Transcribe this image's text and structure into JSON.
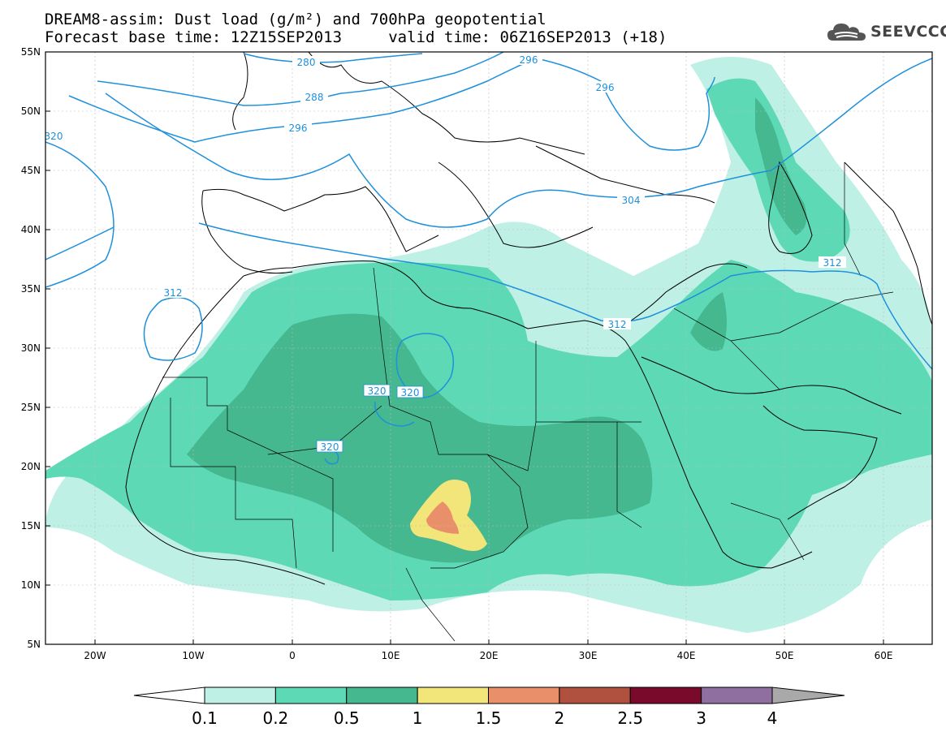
{
  "title": {
    "line1": "DREAM8-assim: Dust load (g/m²) and 700hPa geopotential",
    "line2": "Forecast base time: 12Z15SEP2013     valid time: 06Z16SEP2013 (+18)"
  },
  "logo": {
    "text": "SEEVCCC",
    "icon": "cloud-icon"
  },
  "axes": {
    "lat_labels": [
      "55N",
      "50N",
      "45N",
      "40N",
      "35N",
      "30N",
      "25N",
      "20N",
      "15N",
      "10N",
      "5N"
    ],
    "lon_labels": [
      "20W",
      "10W",
      "0",
      "10E",
      "20E",
      "30E",
      "40E",
      "50E",
      "60E"
    ]
  },
  "contours": {
    "labels": [
      "280",
      "288",
      "296",
      "296",
      "296",
      "320",
      "304",
      "312",
      "312",
      "312",
      "320",
      "320",
      "320"
    ]
  },
  "colorbar": {
    "ticks": [
      "0.1",
      "0.2",
      "0.5",
      "1",
      "1.5",
      "2",
      "2.5",
      "3",
      "4"
    ],
    "colors": [
      "#bff0e6",
      "#5ed9b5",
      "#45b890",
      "#f2e57a",
      "#e9906b",
      "#b0503e",
      "#7a0a2b",
      "#8e6fa0"
    ],
    "under_color": "#ffffff",
    "over_color": "#a9a9a9"
  },
  "colors": {
    "dust_0_1": "#bff0e6",
    "dust_0_2": "#5ed9b5",
    "dust_0_5": "#45b890",
    "dust_1": "#f2e57a",
    "dust_1_5": "#e9906b",
    "dust_2": "#b0503e",
    "contour": "#1e90dc",
    "coast": "#000000"
  }
}
